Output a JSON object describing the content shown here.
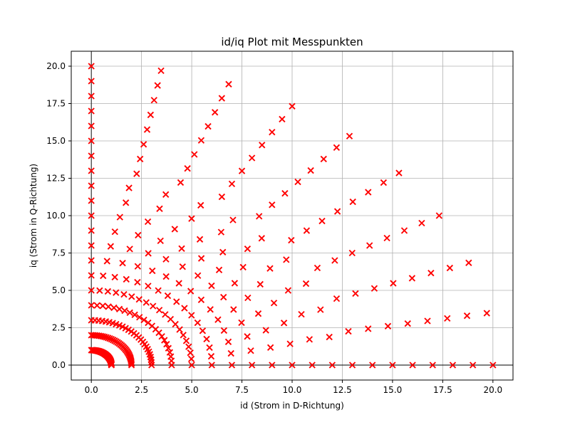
{
  "chart_data": {
    "type": "scatter",
    "title": "id/iq Plot mit Messpunkten",
    "xlabel": "id (Strom in D-Richtung)",
    "ylabel": "iq (Strom in Q-Richtung)",
    "xlim": [
      -1.0,
      21.0
    ],
    "ylim": [
      -1.0,
      21.0
    ],
    "xticks": [
      0.0,
      2.5,
      5.0,
      7.5,
      10.0,
      12.5,
      15.0,
      17.5,
      20.0
    ],
    "yticks": [
      0.0,
      2.5,
      5.0,
      7.5,
      10.0,
      12.5,
      15.0,
      17.5,
      20.0
    ],
    "xtick_labels": [
      "0.0",
      "2.5",
      "5.0",
      "7.5",
      "10.0",
      "12.5",
      "15.0",
      "17.5",
      "20.0"
    ],
    "ytick_labels": [
      "0.0",
      "2.5",
      "5.0",
      "7.5",
      "10.0",
      "12.5",
      "15.0",
      "17.5",
      "20.0"
    ],
    "grid": true,
    "zero_lines": true,
    "marker": "x",
    "marker_color": "#ff0000",
    "series": [
      {
        "radii": [
          1,
          2,
          3,
          4,
          5,
          6,
          7,
          8,
          9,
          10,
          11,
          12,
          13,
          14,
          15,
          16,
          17,
          18,
          19,
          20
        ],
        "points_per_quarter_arc": [
          41,
          34,
          27,
          23,
          20,
          17,
          15,
          14,
          13,
          12,
          11,
          11,
          10,
          10,
          10,
          10,
          10,
          10,
          10,
          10
        ],
        "angle_range_deg": [
          0,
          90
        ]
      }
    ]
  }
}
